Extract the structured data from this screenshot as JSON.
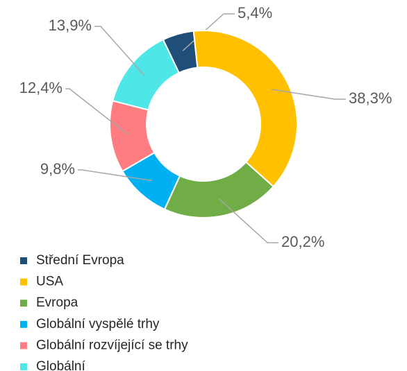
{
  "chart_data": {
    "type": "donut",
    "categories": [
      "Střední Evropa",
      "USA",
      "Evropa",
      "Globální vyspělé trhy",
      "Globální rozvíjející se trhy",
      "Globální"
    ],
    "values": [
      5.4,
      38.3,
      20.2,
      9.8,
      12.4,
      13.9
    ],
    "value_labels": [
      "5,4%",
      "38,3%",
      "20,2%",
      "9,8%",
      "12,4%",
      "13,9%"
    ],
    "colors": [
      "#1f4e79",
      "#ffc000",
      "#70ad47",
      "#00b0f0",
      "#ff7c80",
      "#4ee6e6"
    ],
    "legend": "bottom-left"
  }
}
